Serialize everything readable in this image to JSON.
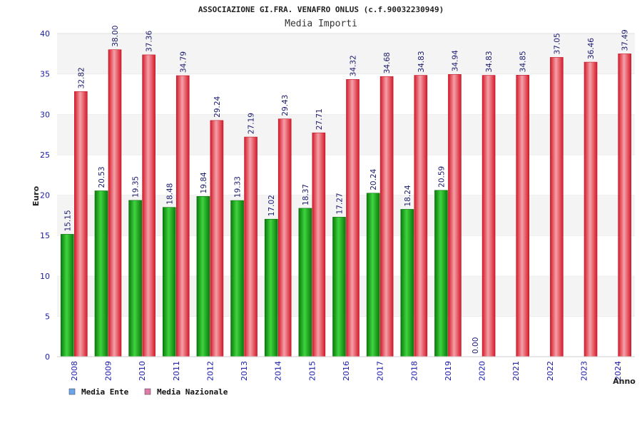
{
  "chart_data": {
    "type": "bar",
    "title": "ASSOCIAZIONE GI.FRA. VENAFRO ONLUS (c.f.90032230949)",
    "subtitle": "Media Importi",
    "xlabel": "Anno",
    "ylabel": "Euro",
    "ylim": [
      0,
      40
    ],
    "yticks": [
      0,
      5,
      10,
      15,
      20,
      25,
      30,
      35,
      40
    ],
    "categories": [
      "2008",
      "2009",
      "2010",
      "2011",
      "2012",
      "2013",
      "2014",
      "2015",
      "2016",
      "2017",
      "2018",
      "2019",
      "2020",
      "2021",
      "2022",
      "2023",
      "2024"
    ],
    "series": [
      {
        "name": "Media Ente",
        "color": "#1fa81f",
        "legend_color": "#6aa6f0",
        "values": [
          15.15,
          20.53,
          19.35,
          18.48,
          19.84,
          19.33,
          17.02,
          18.37,
          17.27,
          20.24,
          18.24,
          20.59,
          0,
          null,
          null,
          null,
          null
        ],
        "labels": [
          "15.15",
          "20.53",
          "19.35",
          "18.48",
          "19.84",
          "19.33",
          "17.02",
          "18.37",
          "17.27",
          "20.24",
          "18.24",
          "20.59",
          "0.00",
          "",
          "",
          "",
          ""
        ]
      },
      {
        "name": "Media Nazionale",
        "color": "#e8303e",
        "legend_color": "#e07aa8",
        "values": [
          32.82,
          38.0,
          37.36,
          34.79,
          29.24,
          27.19,
          29.43,
          27.71,
          34.32,
          34.68,
          34.83,
          34.94,
          34.83,
          34.85,
          37.05,
          36.46,
          37.49
        ],
        "labels": [
          "32.82",
          "38.00",
          "37.36",
          "34.79",
          "29.24",
          "27.19",
          "29.43",
          "27.71",
          "34.32",
          "34.68",
          "34.83",
          "34.94",
          "34.83",
          "34.85",
          "37.05",
          "36.46",
          "37.49"
        ]
      }
    ],
    "grid": true,
    "legend_position": "bottom-left"
  }
}
